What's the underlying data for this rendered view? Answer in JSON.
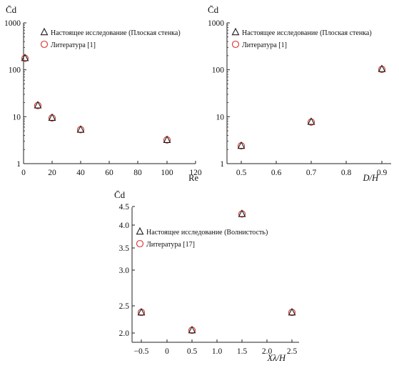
{
  "chart_data": [
    {
      "type": "scatter",
      "title": "",
      "xlabel": "Re",
      "ylabel": "C̄d",
      "xlim": [
        0,
        120
      ],
      "ylim": [
        1,
        1000
      ],
      "yscale": "log",
      "xticks": [
        "0",
        "20",
        "40",
        "60",
        "80",
        "100",
        "120"
      ],
      "yticks": [
        "1",
        "10",
        "100",
        "1000"
      ],
      "legend_position": "top-right",
      "series": [
        {
          "name": "Настоящее исследование (Плоская стенка)",
          "marker": "triangle",
          "color": "#1a1a1a",
          "x": [
            1,
            10,
            20,
            40,
            100
          ],
          "y": [
            178,
            17.5,
            9.5,
            5.3,
            3.2
          ]
        },
        {
          "name": "Литература [1]",
          "marker": "circle",
          "color": "#d9302c",
          "x": [
            1,
            10,
            20,
            40,
            100
          ],
          "y": [
            176,
            17.3,
            9.4,
            5.3,
            3.2
          ]
        }
      ]
    },
    {
      "type": "scatter",
      "title": "",
      "xlabel": "D/H",
      "ylabel": "C̄d",
      "xlim": [
        0.45,
        0.95
      ],
      "ylim": [
        1,
        1000
      ],
      "yscale": "log",
      "xticks": [
        "0.5",
        "0.6",
        "0.7",
        "0.8",
        "0.9"
      ],
      "yticks": [
        "1",
        "10",
        "100",
        "1000"
      ],
      "legend_position": "top-right",
      "series": [
        {
          "name": "Настоящее исследование (Плоская стенка)",
          "marker": "triangle",
          "color": "#1a1a1a",
          "x": [
            0.5,
            0.7,
            0.9
          ],
          "y": [
            2.4,
            7.8,
            104
          ]
        },
        {
          "name": "Литература [1]",
          "marker": "circle",
          "color": "#d9302c",
          "x": [
            0.5,
            0.7,
            0.9
          ],
          "y": [
            2.4,
            7.7,
            102
          ]
        }
      ]
    },
    {
      "type": "scatter",
      "title": "",
      "xlabel": "Xλ/H",
      "ylabel": "C̄d",
      "xlim": [
        -0.75,
        2.75
      ],
      "ylim": [
        1.95,
        4.55
      ],
      "yscale": "log",
      "xticks": [
        "−0.5",
        "0",
        "0.5",
        "1.0",
        "1.5",
        "2.0",
        "2.5"
      ],
      "yticks": [
        "2.0",
        "2.5",
        "3.0",
        "3.5",
        "4.0",
        "4.5"
      ],
      "legend_position": "center-right",
      "series": [
        {
          "name": "Настоящее исследование (Волнистость)",
          "marker": "triangle",
          "color": "#1a1a1a",
          "x": [
            -0.5,
            0.5,
            1.5,
            2.5
          ],
          "y": [
            2.38,
            2.05,
            4.3,
            2.38
          ]
        },
        {
          "name": "Литература [17]",
          "marker": "circle",
          "color": "#d9302c",
          "x": [
            -0.5,
            0.5,
            1.5,
            2.5
          ],
          "y": [
            2.38,
            2.05,
            4.3,
            2.38
          ]
        }
      ]
    }
  ]
}
